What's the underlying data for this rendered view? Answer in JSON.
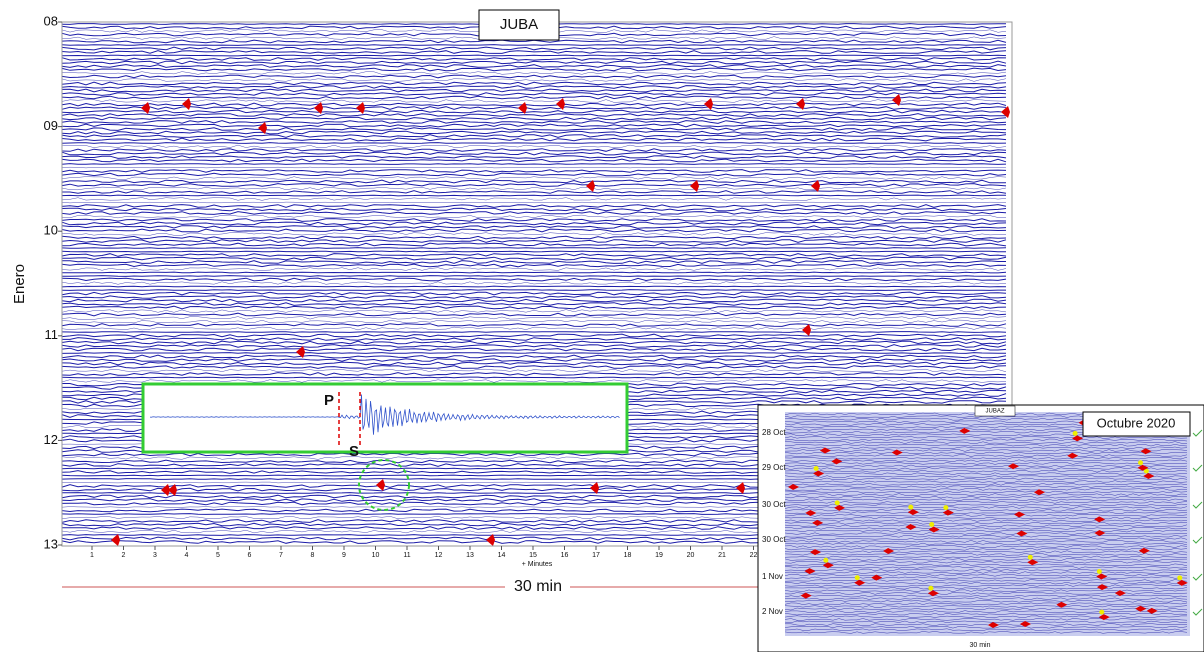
{
  "title": "JUBA",
  "y_axis": {
    "label": "Enero",
    "ticks": [
      "08",
      "09",
      "10",
      "11",
      "12",
      "13"
    ]
  },
  "x_axis": {
    "ticks": [
      "1",
      "2",
      "3",
      "4",
      "5",
      "6",
      "7",
      "8",
      "9",
      "10",
      "11",
      "12",
      "13",
      "14",
      "15",
      "16",
      "17",
      "18",
      "19",
      "20",
      "21",
      "22"
    ],
    "label": "+ Minutes"
  },
  "duration_label": "30 min",
  "waveform_inset": {
    "p_label": "P",
    "s_label": "S"
  },
  "month_inset": {
    "station": "JUBAZ",
    "title": "Octubre 2020",
    "day_labels": [
      "28 Oct",
      "29 Oct",
      "30 Oct",
      "30 Oct",
      "1 Nov",
      "2 Nov"
    ],
    "duration_label": "30 min"
  }
}
